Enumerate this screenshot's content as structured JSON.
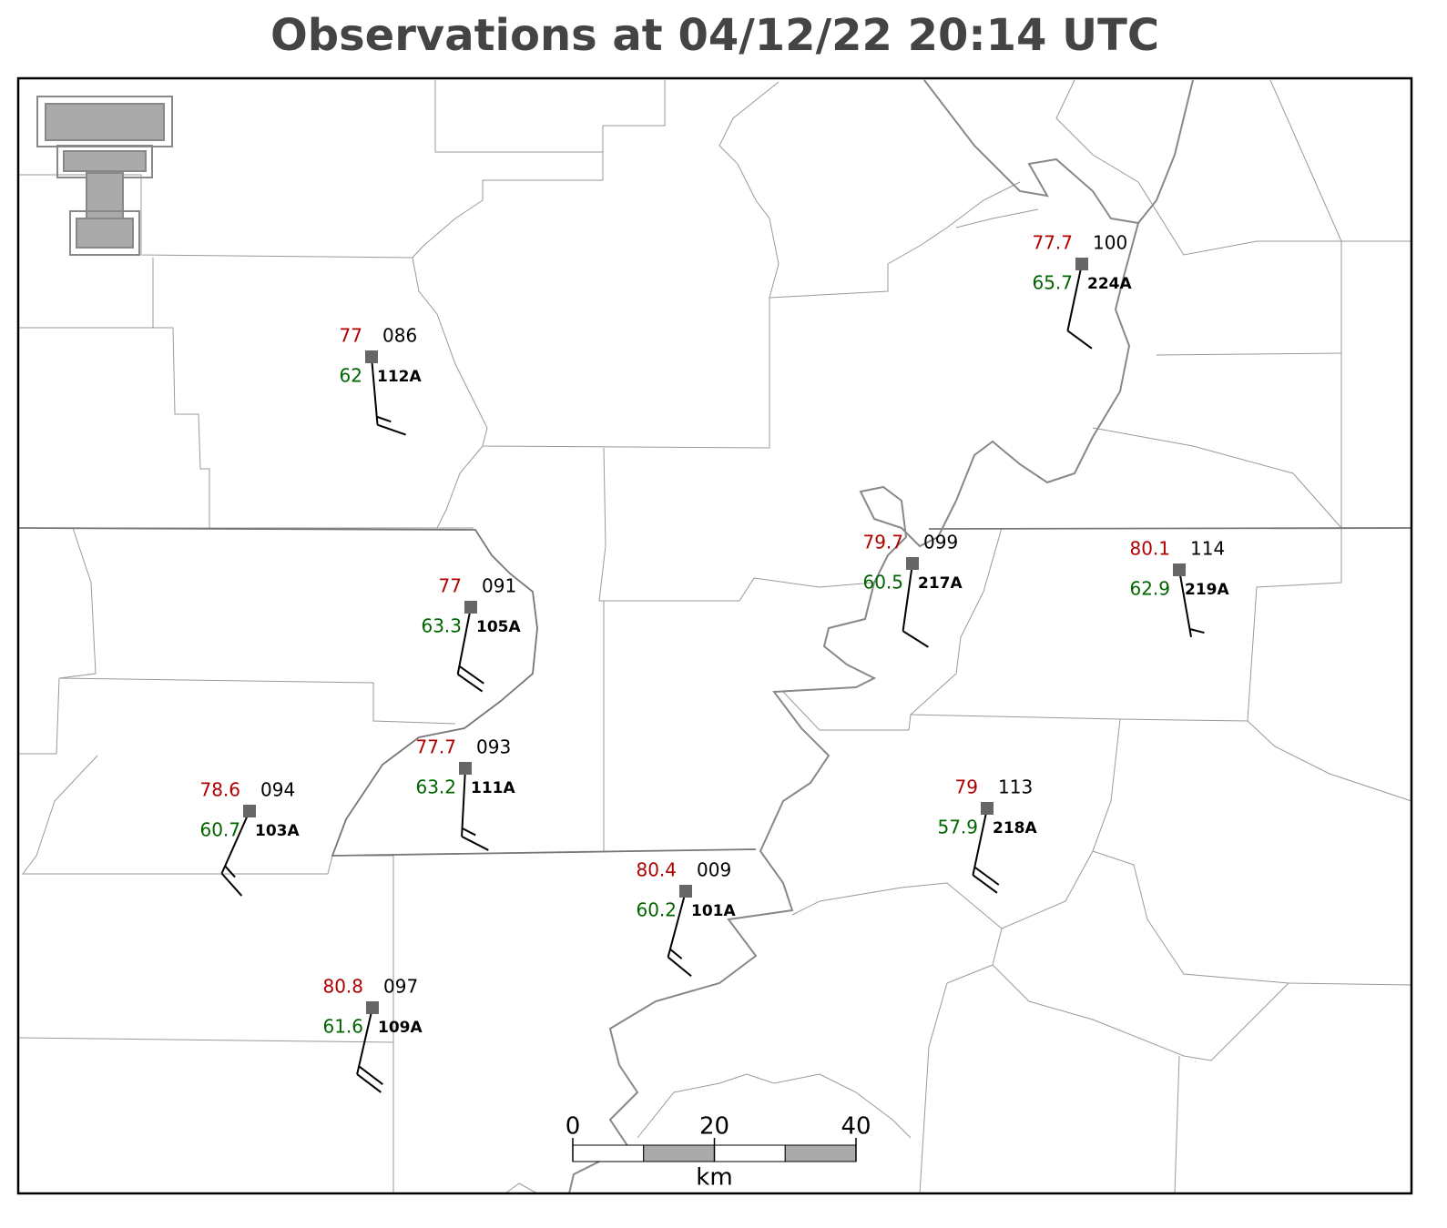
{
  "title": "Observations at 04/12/22 20:14 UTC",
  "stations": [
    {
      "id": "112A",
      "temp": 77.0,
      "dewpoint": 62.0,
      "pressure": "086",
      "wind_dir": 175,
      "wind_speed": 15
    },
    {
      "id": "224A",
      "temp": 77.7,
      "dewpoint": 65.7,
      "pressure": "100",
      "wind_dir": 192,
      "wind_speed": 10
    },
    {
      "id": "217A",
      "temp": 79.7,
      "dewpoint": 60.5,
      "pressure": "099",
      "wind_dir": 188,
      "wind_speed": 10
    },
    {
      "id": "219A",
      "temp": 80.1,
      "dewpoint": 62.9,
      "pressure": "114",
      "wind_dir": 170,
      "wind_speed": 5
    },
    {
      "id": "105A",
      "temp": 77.0,
      "dewpoint": 63.3,
      "pressure": "091",
      "wind_dir": 191,
      "wind_speed": 20
    },
    {
      "id": "111A",
      "temp": 77.7,
      "dewpoint": 63.2,
      "pressure": "093",
      "wind_dir": 183,
      "wind_speed": 15
    },
    {
      "id": "103A",
      "temp": 78.6,
      "dewpoint": 60.7,
      "pressure": "094",
      "wind_dir": 204,
      "wind_speed": 15
    },
    {
      "id": "218A",
      "temp": 79.0,
      "dewpoint": 57.9,
      "pressure": "113",
      "wind_dir": 192,
      "wind_speed": 20
    },
    {
      "id": "101A",
      "temp": 80.4,
      "dewpoint": 60.2,
      "pressure": "009",
      "wind_dir": 195,
      "wind_speed": 15
    },
    {
      "id": "109A",
      "temp": 80.8,
      "dewpoint": 61.6,
      "pressure": "097",
      "wind_dir": 193,
      "wind_speed": 20
    }
  ],
  "scale_bar": {
    "ticks": [
      0,
      20,
      40
    ],
    "unit": "km"
  }
}
